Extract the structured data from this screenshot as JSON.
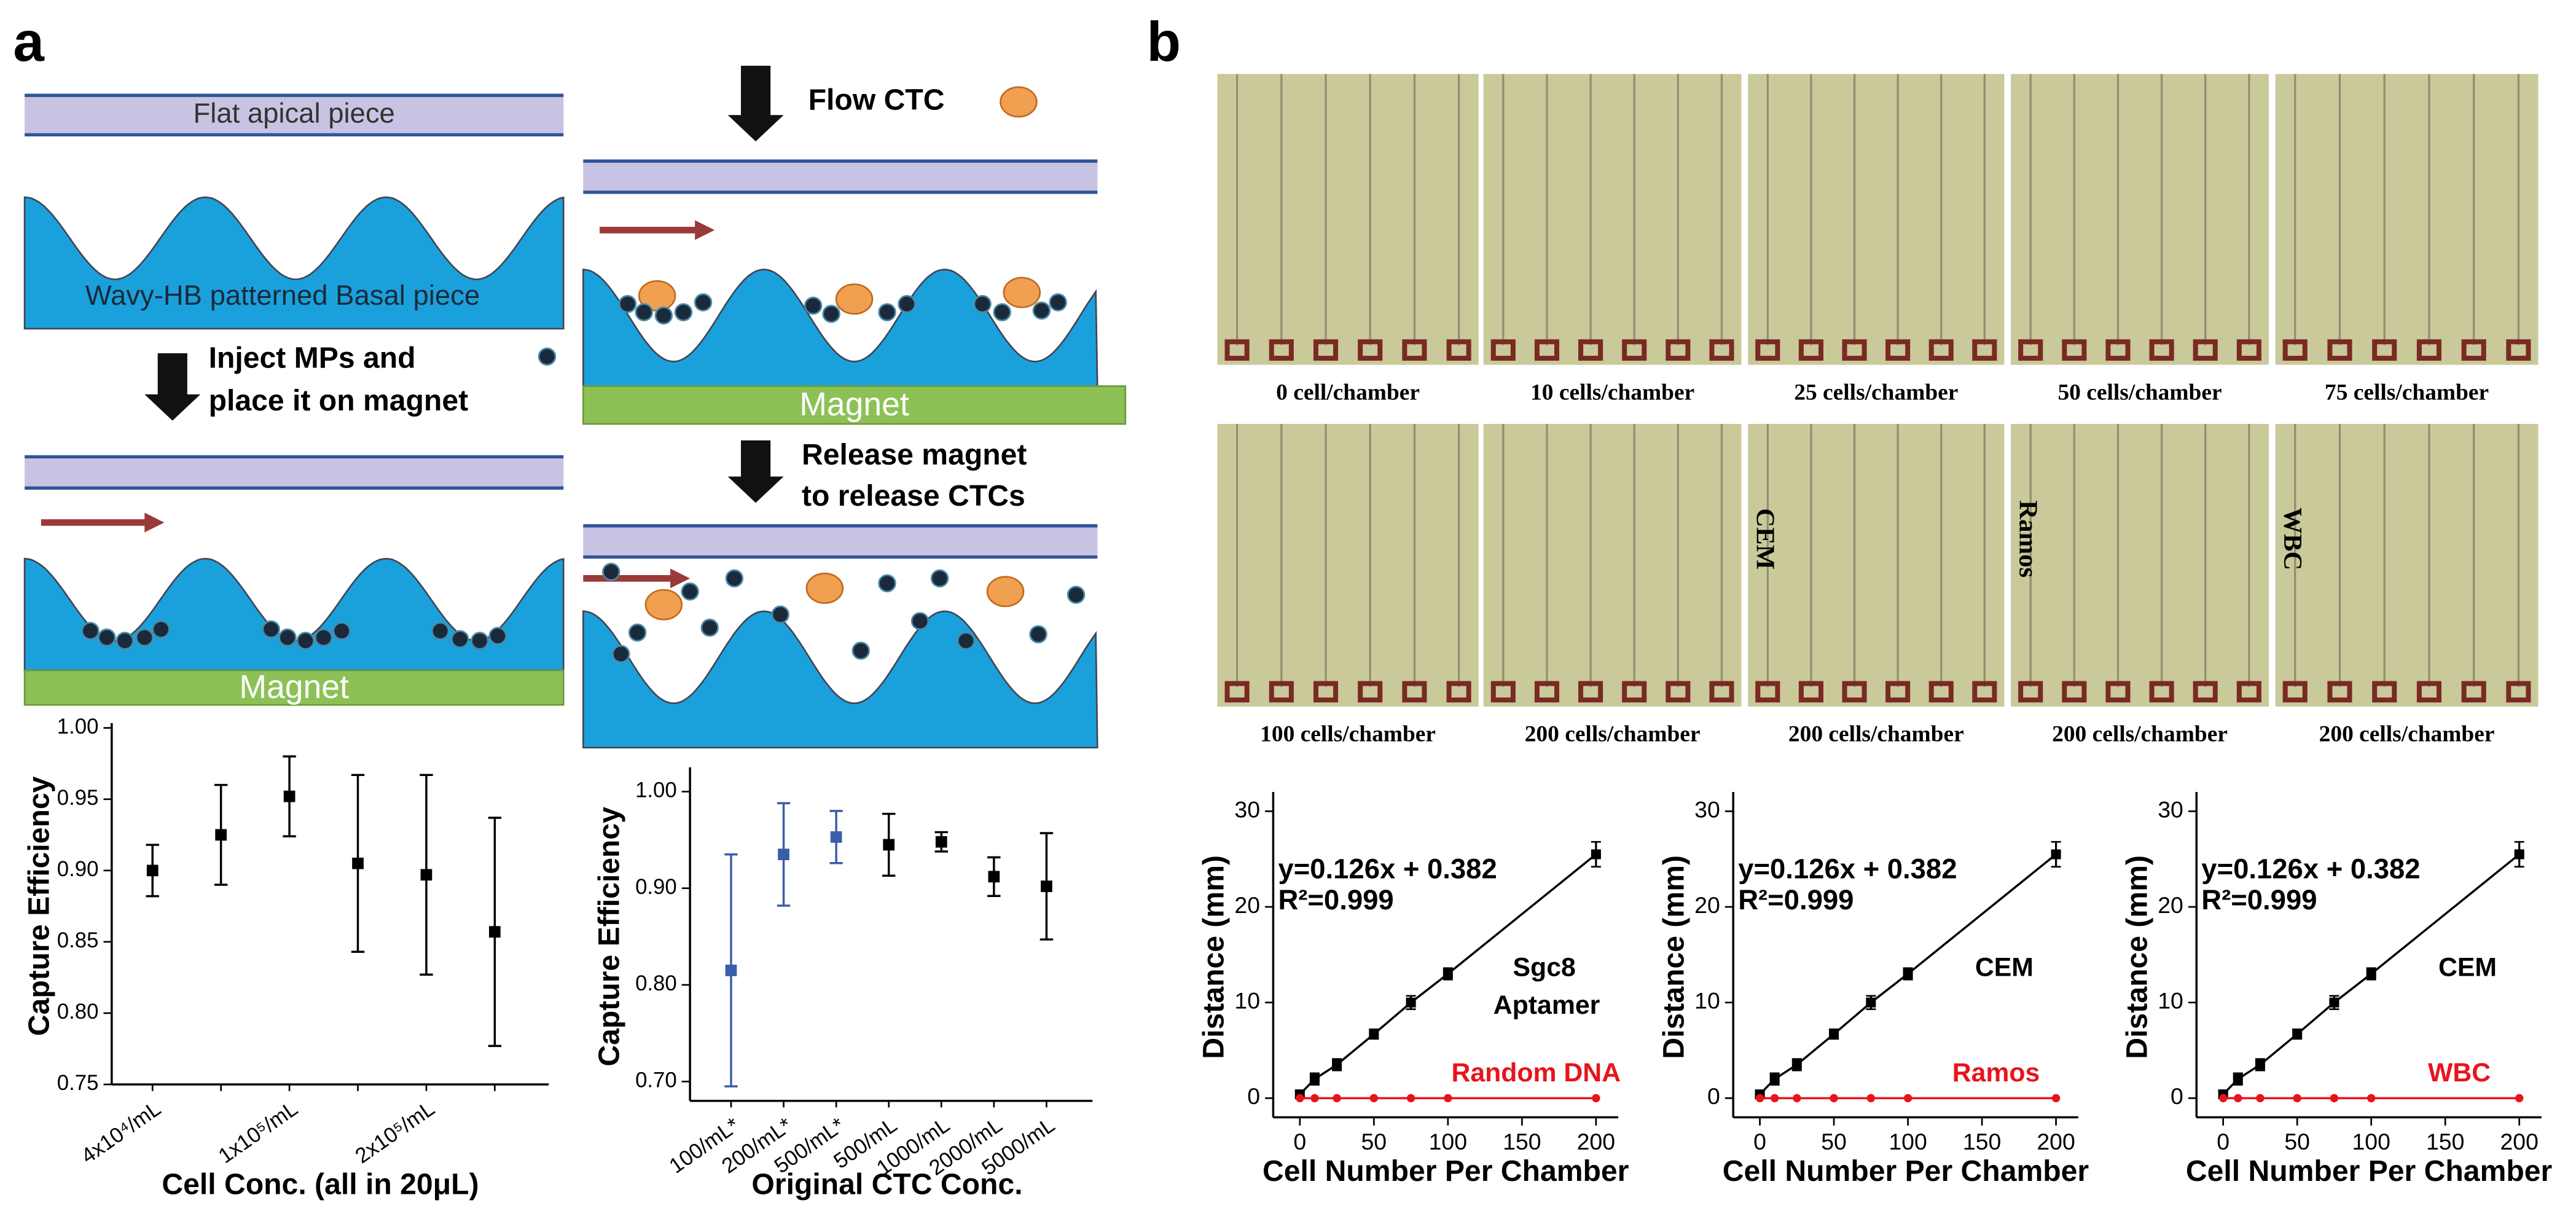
{
  "panel_labels": [
    "a",
    "b"
  ],
  "diagram": {
    "flat_apical_piece": "Flat apical piece",
    "basal_piece": "Wavy-HB patterned Basal piece",
    "step_inject": [
      "Inject MPs and",
      "place it on magnet"
    ],
    "magnet": [
      "Magnet",
      "Magnet"
    ],
    "step_flow": "Flow CTC",
    "step_release": [
      "Release magnet",
      "to release CTCs"
    ]
  },
  "photos": [
    {
      "caption": "0 cell/chamber"
    },
    {
      "caption": "10 cells/chamber"
    },
    {
      "caption": "25 cells/chamber"
    },
    {
      "caption": "50 cells/chamber"
    },
    {
      "caption": "75 cells/chamber"
    },
    {
      "caption": "100 cells/chamber"
    },
    {
      "caption": "200 cells/chamber"
    },
    {
      "caption": "200 cells/chamber",
      "label": "CEM"
    },
    {
      "caption": "200 cells/chamber",
      "label": "Ramos"
    },
    {
      "caption": "200 cells/chamber",
      "label": "WBC"
    }
  ],
  "chart_data": [
    {
      "type": "errorbar",
      "ylabel": "Capture Efficiency",
      "xlabel": "Cell Conc. (all in 20μL)",
      "categories": [
        "4x10⁴/mL",
        null,
        "1x10⁵/mL",
        null,
        "2x10⁵/mL",
        null
      ],
      "series": [
        {
          "color": "#000000",
          "values": [
            0.9,
            0.925,
            0.952,
            0.905,
            0.897,
            0.857
          ],
          "errors": [
            0.018,
            0.035,
            0.028,
            0.062,
            0.07,
            0.08
          ]
        }
      ],
      "ylim": [
        0.75,
        1.0
      ],
      "yticks": [
        {
          "value": 0.75,
          "label": "0.75"
        },
        {
          "value": 0.8,
          "label": "0.80"
        },
        {
          "value": 0.85,
          "label": "0.85"
        },
        {
          "value": 0.9,
          "label": "0.90"
        },
        {
          "value": 0.95,
          "label": "0.95"
        },
        {
          "value": 1.0,
          "label": "1.00"
        }
      ]
    },
    {
      "type": "errorbar",
      "ylabel": "Capture Efficiency",
      "xlabel": "Original CTC Conc.",
      "categories": [
        "100/mL*",
        "200/mL*",
        "500/mL*",
        "500/mL",
        "1000/mL",
        "2000/mL",
        "5000/mL"
      ],
      "series": [
        {
          "colors": [
            "#3a5ea8",
            "#3a5ea8",
            "#3a5ea8",
            "#000000",
            "#000000",
            "#000000",
            "#000000"
          ],
          "values": [
            0.815,
            0.935,
            0.953,
            0.945,
            0.948,
            0.912,
            0.902
          ],
          "errors": [
            0.12,
            0.053,
            0.027,
            0.032,
            0.01,
            0.02,
            0.055
          ]
        }
      ],
      "ylim": [
        0.68,
        1.02
      ],
      "yticks": [
        {
          "value": 0.7,
          "label": "0.70"
        },
        {
          "value": 0.8,
          "label": "0.80"
        },
        {
          "value": 0.9,
          "label": "0.90"
        },
        {
          "value": 1.0,
          "label": "1.00"
        }
      ]
    },
    {
      "type": "line",
      "ylabel": "Distance (mm)",
      "xlabel": "Cell Number Per Chamber",
      "x": [
        0,
        10,
        25,
        50,
        75,
        100,
        200
      ],
      "series": [
        {
          "name": "Sgc8 Aptamer",
          "color": "#000000",
          "values": [
            0.4,
            2,
            3.5,
            6.7,
            10,
            13,
            25.5
          ],
          "errors": [
            0.3,
            0.6,
            0.6,
            0.5,
            0.7,
            0.6,
            1.3
          ]
        },
        {
          "name": "Random DNA",
          "color": "#e8141c",
          "values": [
            0,
            0,
            0,
            0,
            0,
            0,
            0
          ]
        }
      ],
      "annotations": [
        "y=0.126x + 0.382",
        "R²=0.999"
      ],
      "xlim": [
        -18,
        215
      ],
      "xticks": [
        0,
        50,
        100,
        150,
        200
      ],
      "ylim": [
        -2,
        31.5
      ],
      "yticks": [
        0,
        10,
        20,
        30
      ]
    },
    {
      "type": "line",
      "ylabel": "Distance (mm)",
      "xlabel": "Cell Number Per Chamber",
      "x": [
        0,
        10,
        25,
        50,
        75,
        100,
        200
      ],
      "series": [
        {
          "name": "CEM",
          "color": "#000000",
          "values": [
            0.4,
            2,
            3.5,
            6.7,
            10,
            13,
            25.5
          ],
          "errors": [
            0.3,
            0.6,
            0.6,
            0.5,
            0.7,
            0.6,
            1.3
          ]
        },
        {
          "name": "Ramos",
          "color": "#e8141c",
          "values": [
            0,
            0,
            0,
            0,
            0,
            0,
            0
          ]
        }
      ],
      "annotations": [
        "y=0.126x + 0.382",
        "R²=0.999"
      ],
      "xlim": [
        -18,
        215
      ],
      "xticks": [
        0,
        50,
        100,
        150,
        200
      ],
      "ylim": [
        -2,
        31.5
      ],
      "yticks": [
        0,
        10,
        20,
        30
      ]
    },
    {
      "type": "line",
      "ylabel": "Distance (mm)",
      "xlabel": "Cell Number Per Chamber",
      "x": [
        0,
        10,
        25,
        50,
        75,
        100,
        200
      ],
      "series": [
        {
          "name": "CEM",
          "color": "#000000",
          "values": [
            0.4,
            2,
            3.5,
            6.7,
            10,
            13,
            25.5
          ],
          "errors": [
            0.3,
            0.6,
            0.6,
            0.5,
            0.7,
            0.6,
            1.3
          ]
        },
        {
          "name": "WBC",
          "color": "#e8141c",
          "values": [
            0,
            0,
            0,
            0,
            0,
            0,
            0
          ]
        }
      ],
      "annotations": [
        "y=0.126x + 0.382",
        "R²=0.999"
      ],
      "xlim": [
        -18,
        215
      ],
      "xticks": [
        0,
        50,
        100,
        150,
        200
      ],
      "ylim": [
        -2,
        31.5
      ],
      "yticks": [
        0,
        10,
        20,
        30
      ]
    }
  ]
}
